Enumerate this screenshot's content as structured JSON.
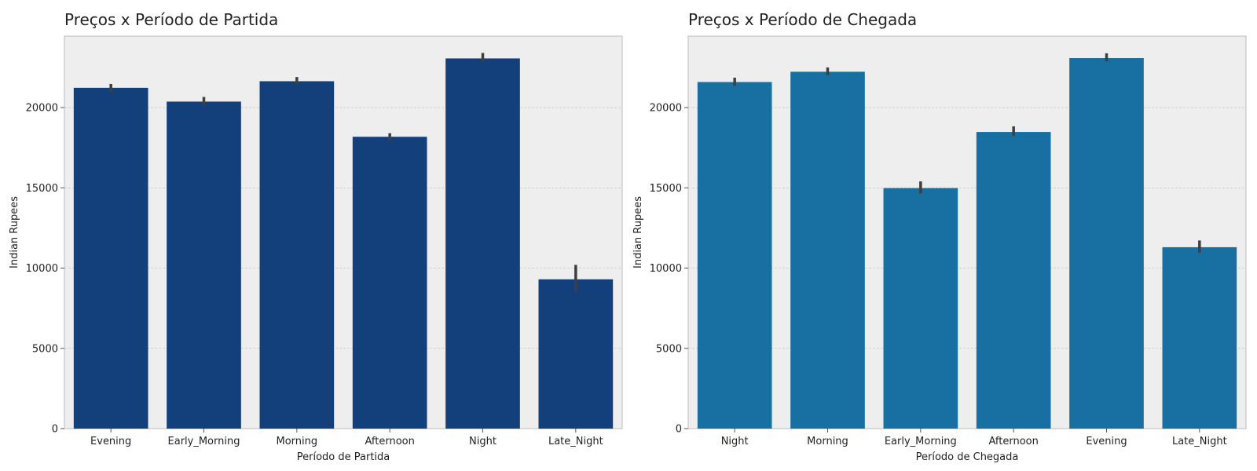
{
  "chart_data": [
    {
      "type": "bar",
      "title": "Preços x Período de Partida",
      "xlabel": "Período de Partida",
      "ylabel": "Indian Rupees",
      "categories": [
        "Evening",
        "Early_Morning",
        "Morning",
        "Afternoon",
        "Night",
        "Late_Night"
      ],
      "values": [
        21230,
        20370,
        21640,
        18180,
        23060,
        9300
      ],
      "error_low": [
        20950,
        20170,
        21420,
        17950,
        22840,
        8500
      ],
      "error_high": [
        21470,
        20660,
        21900,
        18400,
        23400,
        10200
      ],
      "ylim": [
        0,
        24450
      ],
      "yticks": [
        0,
        5000,
        10000,
        15000,
        20000
      ],
      "grid": true,
      "bar_color": "#133f7b",
      "error_color": "#3f3f3f"
    },
    {
      "type": "bar",
      "title": "Preços x Período de Chegada",
      "xlabel": "Período de Chegada",
      "ylabel": "Indian Rupees",
      "categories": [
        "Night",
        "Morning",
        "Early_Morning",
        "Afternoon",
        "Evening",
        "Late_Night"
      ],
      "values": [
        21590,
        22230,
        14980,
        18480,
        23080,
        11300
      ],
      "error_low": [
        21360,
        22000,
        14640,
        18230,
        22880,
        10960
      ],
      "error_high": [
        21860,
        22500,
        15400,
        18830,
        23380,
        11720
      ],
      "ylim": [
        0,
        24450
      ],
      "yticks": [
        0,
        5000,
        10000,
        15000,
        20000
      ],
      "grid": true,
      "bar_color": "#1870a2",
      "error_color": "#3f3f3f"
    }
  ]
}
